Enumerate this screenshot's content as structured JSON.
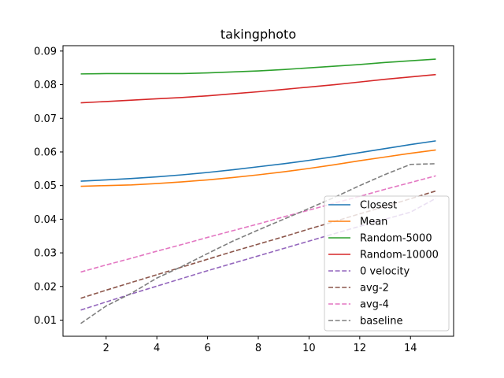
{
  "chart_data": {
    "type": "line",
    "title": "takingphoto",
    "xlabel": "",
    "ylabel": "",
    "xlim": [
      0.3,
      15.7
    ],
    "ylim": [
      0.0052,
      0.0916
    ],
    "xticks": [
      2,
      4,
      6,
      8,
      10,
      12,
      14
    ],
    "xtick_labels": [
      "2",
      "4",
      "6",
      "8",
      "10",
      "12",
      "14"
    ],
    "yticks": [
      0.01,
      0.02,
      0.03,
      0.04,
      0.05,
      0.06,
      0.07,
      0.08,
      0.09
    ],
    "ytick_labels": [
      "0.01",
      "0.02",
      "0.03",
      "0.04",
      "0.05",
      "0.06",
      "0.07",
      "0.08",
      "0.09"
    ],
    "grid": false,
    "legend_position": "lower-right",
    "x": [
      1,
      2,
      3,
      4,
      5,
      6,
      7,
      8,
      9,
      10,
      11,
      12,
      13,
      14,
      15
    ],
    "series": [
      {
        "name": "Closest",
        "color": "#1f77b4",
        "dash": "solid",
        "values": [
          0.0513,
          0.0517,
          0.0521,
          0.0526,
          0.0532,
          0.0539,
          0.0547,
          0.0556,
          0.0565,
          0.0575,
          0.0586,
          0.0598,
          0.061,
          0.0622,
          0.0633
        ]
      },
      {
        "name": "Mean",
        "color": "#ff7f0e",
        "dash": "solid",
        "values": [
          0.0498,
          0.05,
          0.0502,
          0.0506,
          0.0511,
          0.0517,
          0.0524,
          0.0532,
          0.0541,
          0.0551,
          0.0562,
          0.0574,
          0.0585,
          0.0596,
          0.0606
        ]
      },
      {
        "name": "Random-5000",
        "color": "#2ca02c",
        "dash": "solid",
        "values": [
          0.0832,
          0.0833,
          0.0833,
          0.0833,
          0.0833,
          0.0835,
          0.0838,
          0.0841,
          0.0845,
          0.085,
          0.0855,
          0.086,
          0.0866,
          0.0871,
          0.0876
        ]
      },
      {
        "name": "Random-10000",
        "color": "#d62728",
        "dash": "solid",
        "values": [
          0.0746,
          0.075,
          0.0754,
          0.0758,
          0.0762,
          0.0767,
          0.0773,
          0.0779,
          0.0786,
          0.0793,
          0.08,
          0.0808,
          0.0816,
          0.0823,
          0.083
        ]
      },
      {
        "name": "0 velocity",
        "color": "#9467bd",
        "dash": "dashed",
        "values": [
          0.013,
          0.0154,
          0.0178,
          0.0201,
          0.0224,
          0.0247,
          0.0269,
          0.0291,
          0.0313,
          0.0335,
          0.0357,
          0.0379,
          0.04,
          0.0421,
          0.0462
        ]
      },
      {
        "name": "avg-2",
        "color": "#8c564b",
        "dash": "dashed",
        "values": [
          0.0165,
          0.0189,
          0.0212,
          0.0235,
          0.0258,
          0.0281,
          0.0304,
          0.0326,
          0.0348,
          0.0371,
          0.0393,
          0.0416,
          0.0438,
          0.0461,
          0.0484
        ]
      },
      {
        "name": "avg-4",
        "color": "#e377c2",
        "dash": "dashed",
        "values": [
          0.0243,
          0.0264,
          0.0284,
          0.0305,
          0.0325,
          0.0346,
          0.0366,
          0.0386,
          0.0407,
          0.0427,
          0.0448,
          0.0468,
          0.0489,
          0.0509,
          0.0529
        ]
      },
      {
        "name": "baseline",
        "color": "#7f7f7f",
        "dash": "dashed",
        "values": [
          0.009,
          0.0142,
          0.018,
          0.0225,
          0.026,
          0.0298,
          0.0335,
          0.0368,
          0.04,
          0.0432,
          0.0465,
          0.05,
          0.0533,
          0.0563,
          0.0565
        ]
      }
    ]
  }
}
